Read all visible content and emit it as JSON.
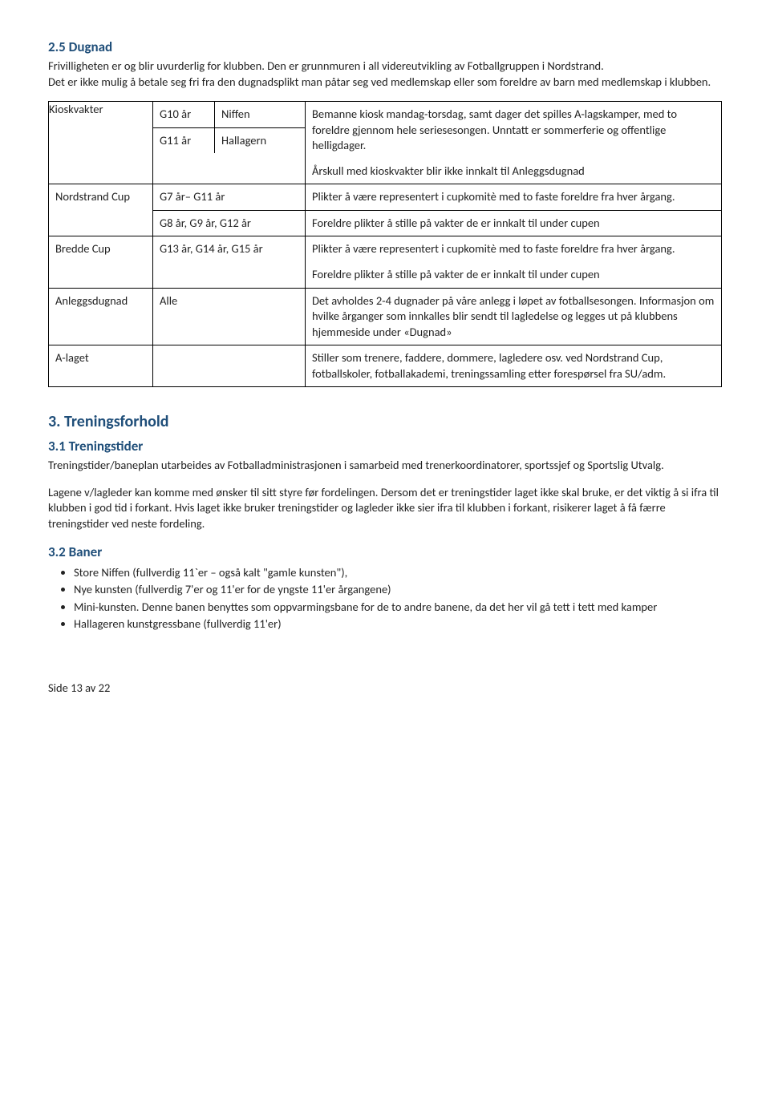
{
  "colors": {
    "heading": "#1f4e79",
    "text": "#222222",
    "border": "#000000",
    "background": "#ffffff"
  },
  "sec25": {
    "heading": "2.5 Dugnad",
    "p1": "Frivilligheten er og blir uvurderlig for klubben. Den er grunnmuren i all videreutvikling av Fotballgruppen i Nordstrand.",
    "p2": "Det er ikke mulig å betale seg fri fra den dugnadsplikt man påtar seg ved medlemskap eller som foreldre av barn med medlemskap i klubben."
  },
  "table": {
    "rows": [
      {
        "a": "Kioskvakter",
        "sub": [
          {
            "b1": "G10 år",
            "b2": "Niffen"
          },
          {
            "b1": "G11 år",
            "b2": "Hallagern"
          }
        ],
        "desc": [
          "Bemanne kiosk mandag-torsdag, samt dager det spilles A-lagskamper, med to foreldre gjennom hele seriesesongen. Unntatt er sommerferie og offentlige helligdager.",
          "Årskull med kioskvakter blir ikke innkalt til Anleggsdugnad"
        ]
      },
      {
        "a": "Nordstrand Cup",
        "b_rows": [
          {
            "b": "G7 år– G11 år",
            "desc": "Plikter å være representert i cupkomitè med to faste foreldre fra hver årgang."
          },
          {
            "b": "G8 år, G9 år, G12 år",
            "desc": "Foreldre plikter å stille på vakter de er innkalt til under cupen"
          }
        ]
      },
      {
        "a": "Bredde Cup",
        "b": "G13 år, G14 år, G15 år",
        "desc": [
          "Plikter å være representert i cupkomitè med to faste foreldre fra hver årgang.",
          "Foreldre plikter å stille på vakter de er innkalt til under cupen"
        ]
      },
      {
        "a": "Anleggsdugnad",
        "b": "Alle",
        "desc": [
          "Det avholdes 2-4 dugnader på våre anlegg i løpet av fotballsesongen. Informasjon om hvilke årganger som innkalles blir sendt til lagledelse og legges ut på klubbens hjemmeside under «Dugnad»"
        ]
      },
      {
        "a": "A-laget",
        "b": "",
        "desc": [
          "Stiller som trenere, faddere, dommere, lagledere osv. ved Nordstrand Cup, fotballskoler, fotballakademi, treningssamling etter forespørsel fra SU/adm."
        ]
      }
    ]
  },
  "sec3": {
    "heading": "3. Treningsforhold"
  },
  "sec31": {
    "heading": "3.1 Treningstider",
    "p1": "Treningstider/baneplan utarbeides av Fotballadministrasjonen i samarbeid med trenerkoordinatorer, sportssjef og Sportslig Utvalg.",
    "p2": "Lagene v/lagleder kan komme med ønsker til sitt styre før fordelingen. Dersom det er treningstider laget ikke skal bruke, er det viktig å si ifra til klubben i god tid i forkant. Hvis laget ikke bruker treningstider og lagleder ikke sier ifra til klubben i forkant, risikerer laget å få færre treningstider ved neste fordeling."
  },
  "sec32": {
    "heading": "3.2 Baner",
    "items": [
      "Store Niffen (fullverdig 11`er – også kalt \"gamle kunsten\"),",
      "Nye kunsten (fullverdig 7'er og 11'er for de yngste 11'er årgangene)",
      "Mini-kunsten. Denne banen benyttes som oppvarmingsbane for de to andre banene, da det her vil gå tett i tett med kamper",
      "Hallageren kunstgressbane (fullverdig 11'er)"
    ]
  },
  "footer": "Side 13 av 22"
}
